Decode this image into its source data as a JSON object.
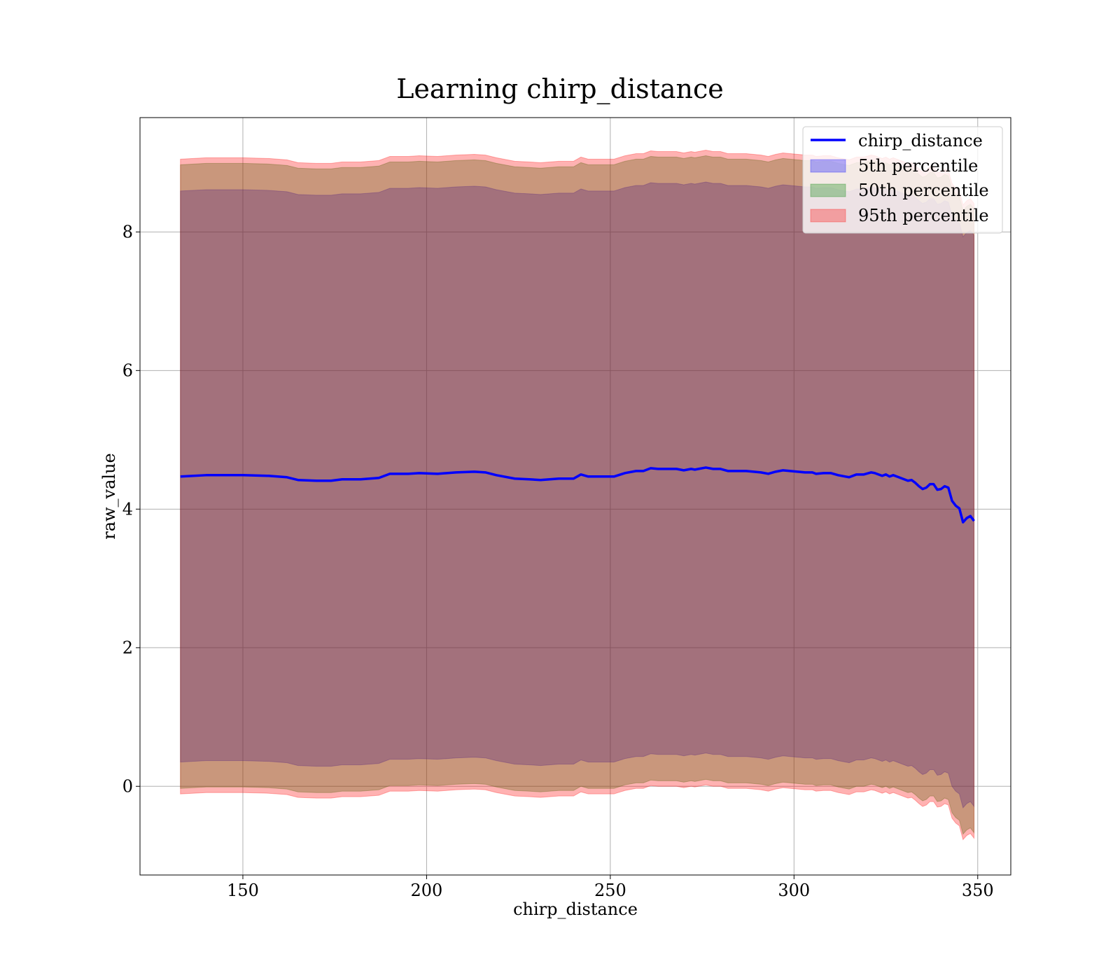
{
  "chart_data": {
    "type": "area",
    "title": "Learning chirp_distance",
    "xlabel": "chirp_distance",
    "ylabel": "raw_value",
    "xlim": [
      122,
      359
    ],
    "ylim": [
      -1.28,
      9.65
    ],
    "xticks": [
      150,
      200,
      250,
      300,
      350
    ],
    "yticks": [
      0,
      2,
      4,
      6,
      8
    ],
    "grid": true,
    "legend_placement": "upper-right",
    "line_series": {
      "name": "chirp_distance",
      "color": "#0000ff",
      "x": [
        133,
        140,
        150,
        157,
        162,
        165,
        170,
        174,
        177,
        182,
        187,
        190,
        195,
        198,
        203,
        208,
        213,
        216,
        219,
        224,
        228,
        231,
        236,
        240,
        242,
        244,
        248,
        251,
        254,
        257,
        259,
        261,
        263,
        266,
        268,
        270,
        272,
        273,
        274,
        276,
        278,
        280,
        282,
        284,
        287,
        289,
        291,
        293,
        295,
        297,
        299,
        301,
        303,
        305,
        306,
        308,
        310,
        312,
        314,
        315,
        317,
        319,
        321,
        322,
        324,
        325,
        326,
        327,
        328,
        330,
        331,
        332,
        333,
        334,
        335,
        336,
        337,
        338,
        339,
        340,
        341,
        342,
        343,
        344,
        345,
        346,
        347,
        348,
        349
      ],
      "y": [
        4.47,
        4.49,
        4.49,
        4.48,
        4.46,
        4.42,
        4.41,
        4.41,
        4.43,
        4.43,
        4.45,
        4.51,
        4.51,
        4.52,
        4.51,
        4.53,
        4.54,
        4.53,
        4.49,
        4.44,
        4.43,
        4.42,
        4.44,
        4.44,
        4.5,
        4.47,
        4.47,
        4.47,
        4.52,
        4.55,
        4.55,
        4.59,
        4.58,
        4.58,
        4.58,
        4.56,
        4.58,
        4.57,
        4.58,
        4.6,
        4.58,
        4.58,
        4.55,
        4.55,
        4.55,
        4.54,
        4.53,
        4.51,
        4.54,
        4.56,
        4.55,
        4.54,
        4.53,
        4.53,
        4.51,
        4.52,
        4.52,
        4.49,
        4.47,
        4.46,
        4.5,
        4.5,
        4.53,
        4.52,
        4.48,
        4.5,
        4.47,
        4.49,
        4.47,
        4.43,
        4.41,
        4.42,
        4.38,
        4.33,
        4.29,
        4.31,
        4.36,
        4.36,
        4.28,
        4.29,
        4.33,
        4.31,
        4.12,
        4.05,
        4.01,
        3.81,
        3.87,
        3.9,
        3.83
      ]
    },
    "bands": [
      {
        "name": "5th percentile",
        "color": "#0000ff",
        "offset": 4.12
      },
      {
        "name": "50th percentile",
        "color": "#008000",
        "offset": 4.5
      },
      {
        "name": "95th percentile",
        "color": "#ff0000",
        "offset": 4.58
      }
    ],
    "legend": [
      "chirp_distance",
      "5th percentile",
      "50th percentile",
      "95th percentile"
    ]
  }
}
